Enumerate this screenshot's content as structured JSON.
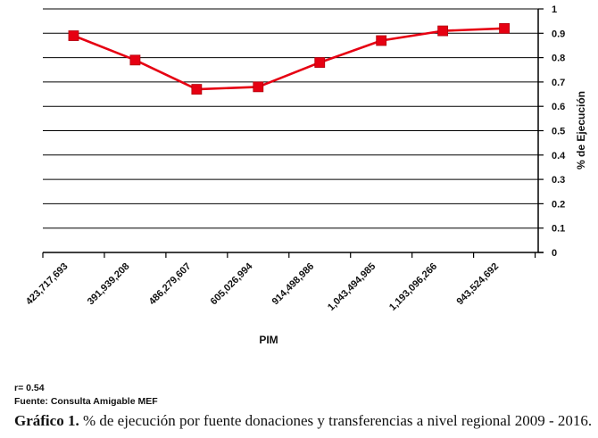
{
  "chart_data": {
    "type": "line",
    "categories": [
      "423,717,693",
      "391,939,208",
      "486,279,607",
      "605,026,994",
      "914,498,986",
      "1,043,494,985",
      "1,193,096,266",
      "943,524,692"
    ],
    "values": [
      0.89,
      0.79,
      0.67,
      0.68,
      0.78,
      0.87,
      0.91,
      0.92
    ],
    "xlabel": "PIM",
    "ylabel": "% de Ejecución",
    "ylim": [
      0,
      1
    ],
    "y_ticks": [
      "0",
      "0.1",
      "0.2",
      "0.3",
      "0.4",
      "0.5",
      "0.6",
      "0.7",
      "0.8",
      "0.9",
      "1"
    ],
    "y_axis_side": "right",
    "grid": true,
    "series_color": "#e60012",
    "marker": "square"
  },
  "notes": {
    "correlation": "r= 0.54",
    "source": "Fuente: Consulta Amigable MEF"
  },
  "caption": {
    "label": "Gráfico 1.",
    "text": "% de ejecución por fuente donaciones y transferencias a nivel regional 2009 - 2016."
  }
}
